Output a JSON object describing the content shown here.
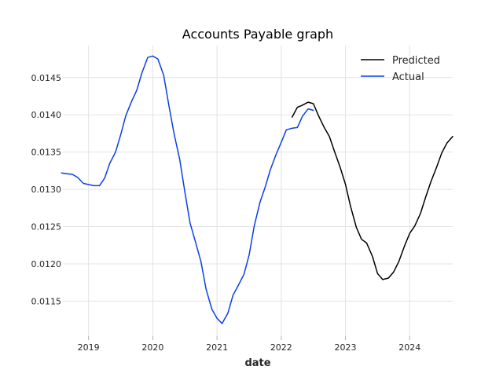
{
  "chart_data": {
    "type": "line",
    "title": "Accounts Payable graph",
    "xlabel": "date",
    "ylabel": "",
    "grid": true,
    "legend_position": "top-right",
    "xlim": [
      2018.6,
      2024.67
    ],
    "ylim": [
      0.01103,
      0.01493
    ],
    "x_ticks": [
      2019,
      2020,
      2021,
      2022,
      2023,
      2024
    ],
    "x_tick_labels": [
      "2019",
      "2020",
      "2021",
      "2022",
      "2023",
      "2024"
    ],
    "y_ticks": [
      0.0115,
      0.012,
      0.0125,
      0.013,
      0.0135,
      0.014,
      0.0145
    ],
    "y_tick_labels": [
      "0.0115",
      "0.0120",
      "0.0125",
      "0.0130",
      "0.0135",
      "0.0140",
      "0.0145"
    ],
    "series": [
      {
        "name": "Actual",
        "color": "#0a3fe8",
        "points": [
          [
            2018.58,
            0.01322
          ],
          [
            2018.75,
            0.0132
          ],
          [
            2018.83,
            0.01316
          ],
          [
            2018.92,
            0.01308
          ],
          [
            2019.08,
            0.01305
          ],
          [
            2019.17,
            0.01305
          ],
          [
            2019.25,
            0.01315
          ],
          [
            2019.33,
            0.01335
          ],
          [
            2019.42,
            0.0135
          ],
          [
            2019.5,
            0.01373
          ],
          [
            2019.58,
            0.01399
          ],
          [
            2019.67,
            0.01418
          ],
          [
            2019.75,
            0.01433
          ],
          [
            2019.83,
            0.01456
          ],
          [
            2019.92,
            0.01477
          ],
          [
            2020.0,
            0.01479
          ],
          [
            2020.08,
            0.01475
          ],
          [
            2020.17,
            0.01453
          ],
          [
            2020.25,
            0.01413
          ],
          [
            2020.33,
            0.01375
          ],
          [
            2020.42,
            0.0134
          ],
          [
            2020.5,
            0.01296
          ],
          [
            2020.58,
            0.01255
          ],
          [
            2020.67,
            0.01228
          ],
          [
            2020.75,
            0.01203
          ],
          [
            2020.83,
            0.01166
          ],
          [
            2020.92,
            0.01139
          ],
          [
            2021.0,
            0.01127
          ],
          [
            2021.08,
            0.0112
          ],
          [
            2021.17,
            0.01134
          ],
          [
            2021.25,
            0.01158
          ],
          [
            2021.33,
            0.01171
          ],
          [
            2021.42,
            0.01186
          ],
          [
            2021.5,
            0.01212
          ],
          [
            2021.58,
            0.01251
          ],
          [
            2021.67,
            0.01283
          ],
          [
            2021.75,
            0.01303
          ],
          [
            2021.83,
            0.01326
          ],
          [
            2021.92,
            0.01347
          ],
          [
            2022.0,
            0.01363
          ],
          [
            2022.08,
            0.0138
          ],
          [
            2022.17,
            0.01382
          ],
          [
            2022.25,
            0.01383
          ],
          [
            2022.33,
            0.01398
          ],
          [
            2022.42,
            0.01408
          ],
          [
            2022.5,
            0.01406
          ]
        ]
      },
      {
        "name": "Predicted",
        "color": "#000000",
        "points": [
          [
            2022.17,
            0.01397
          ],
          [
            2022.25,
            0.0141
          ],
          [
            2022.33,
            0.01413
          ],
          [
            2022.42,
            0.01417
          ],
          [
            2022.5,
            0.01415
          ],
          [
            2022.58,
            0.01399
          ],
          [
            2022.67,
            0.01383
          ],
          [
            2022.75,
            0.01371
          ],
          [
            2022.83,
            0.01351
          ],
          [
            2022.92,
            0.01329
          ],
          [
            2023.0,
            0.01307
          ],
          [
            2023.08,
            0.01277
          ],
          [
            2023.17,
            0.01249
          ],
          [
            2023.25,
            0.01233
          ],
          [
            2023.33,
            0.01228
          ],
          [
            2023.42,
            0.0121
          ],
          [
            2023.5,
            0.01187
          ],
          [
            2023.58,
            0.01179
          ],
          [
            2023.67,
            0.01181
          ],
          [
            2023.75,
            0.01189
          ],
          [
            2023.83,
            0.01203
          ],
          [
            2023.92,
            0.01224
          ],
          [
            2024.0,
            0.01241
          ],
          [
            2024.08,
            0.01251
          ],
          [
            2024.17,
            0.01268
          ],
          [
            2024.25,
            0.0129
          ],
          [
            2024.33,
            0.0131
          ],
          [
            2024.42,
            0.0133
          ],
          [
            2024.5,
            0.01349
          ],
          [
            2024.58,
            0.01362
          ],
          [
            2024.67,
            0.01371
          ]
        ]
      }
    ],
    "legend": [
      {
        "name": "Predicted",
        "color": "#000000"
      },
      {
        "name": "Actual",
        "color": "#0a3fe8"
      }
    ]
  }
}
